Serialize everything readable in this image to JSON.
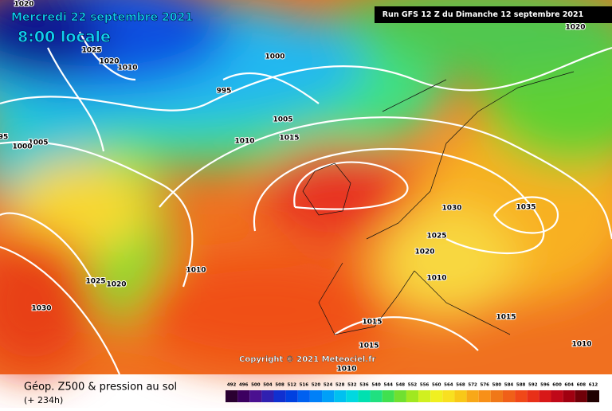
{
  "header": {
    "date": "Mercredi 22 septembre 2021",
    "time": "8:00 locale",
    "run": "Run GFS 12 Z du Dimanche 12 septembre 2021",
    "copyright": "Copyright © 2021 Meteociel.fr"
  },
  "footer": {
    "title": "Géop. Z500 & pression au sol",
    "lead": "(+ 234h)"
  },
  "isobar_labels": [
    "1020",
    "1025",
    "1020",
    "1010",
    "1000",
    "995",
    "1005",
    "1010",
    "1015",
    "1005",
    "1000",
    "95",
    "1030",
    "1035",
    "1025",
    "1020",
    "1010",
    "1010",
    "1025",
    "1020",
    "1030",
    "1015",
    "1015",
    "1015",
    "1010",
    "1010",
    "1020"
  ],
  "colorbar": {
    "values": [
      492,
      496,
      500,
      504,
      508,
      512,
      516,
      520,
      524,
      528,
      532,
      536,
      540,
      544,
      548,
      552,
      556,
      560,
      564,
      568,
      572,
      576,
      580,
      584,
      588,
      592,
      596,
      600,
      604,
      608,
      612
    ],
    "colors": [
      "#2a0030",
      "#3c0060",
      "#4a1090",
      "#3020b0",
      "#1030d0",
      "#0040e0",
      "#0060f0",
      "#0080f8",
      "#00a0f8",
      "#00c0f0",
      "#00d8e0",
      "#00e0b0",
      "#20e080",
      "#40e050",
      "#70e030",
      "#a0e820",
      "#d0f020",
      "#f0f020",
      "#f8e020",
      "#f8c818",
      "#f8a818",
      "#f89018",
      "#f07818",
      "#f06018",
      "#f04818",
      "#e83018",
      "#d81818",
      "#c00818",
      "#a00010",
      "#700008",
      "#200000"
    ]
  }
}
